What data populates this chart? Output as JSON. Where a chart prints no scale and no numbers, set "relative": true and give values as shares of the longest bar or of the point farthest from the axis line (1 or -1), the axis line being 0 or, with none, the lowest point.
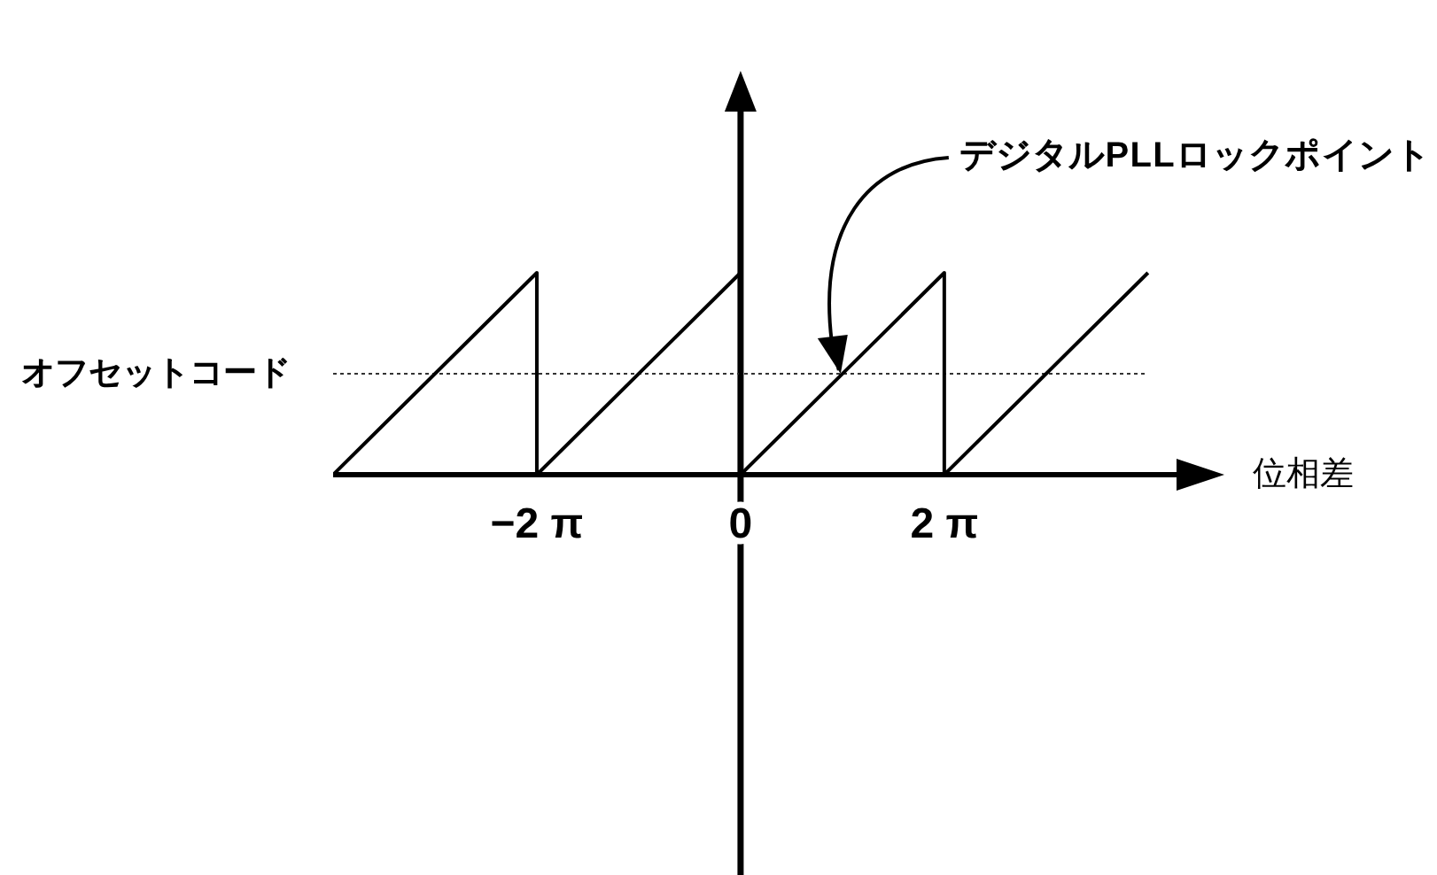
{
  "chart_data": {
    "type": "line",
    "xlabel": "位相差",
    "relative": true,
    "x": [
      -12.566,
      -6.283,
      -6.283,
      0,
      0,
      6.283,
      6.283,
      12.566
    ],
    "series": [
      {
        "color": "#000000",
        "values": [
          0,
          1,
          0,
          1,
          0,
          1,
          0,
          1
        ]
      }
    ],
    "xlim": [
      -12.566,
      13.5
    ],
    "xticks": [
      {
        "value": -6.283,
        "label": "−2 π"
      },
      0,
      {
        "value": 6.283,
        "label": "2 π"
      }
    ],
    "ref_lines": [
      {
        "axis": "y",
        "value": 0.5,
        "label": "オフセットコード",
        "color": "#333333",
        "line_style": "dotted"
      }
    ],
    "annotations": [
      {
        "text": "デジタルPLLロックポイント",
        "x": 3.14,
        "y": 0.5
      }
    ],
    "marker": "none",
    "line_style": "solid"
  }
}
